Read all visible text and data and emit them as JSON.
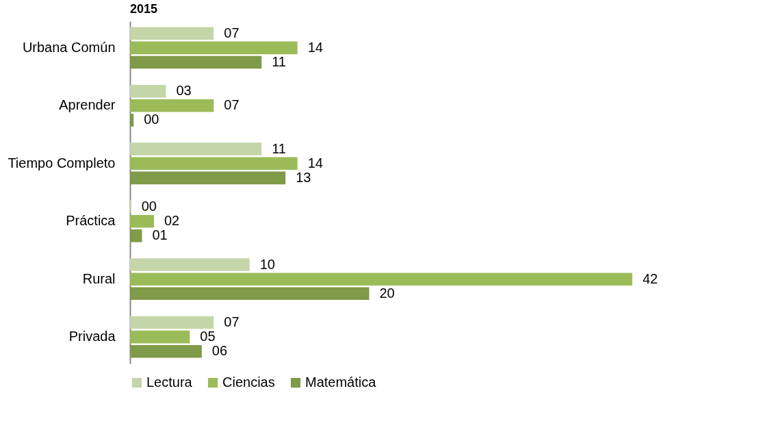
{
  "chart_data": {
    "type": "bar",
    "orientation": "horizontal",
    "title": "2015",
    "categories": [
      "Urbana Común",
      "Aprender",
      "Tiempo Completo",
      "Práctica",
      "Rural",
      "Privada"
    ],
    "series": [
      {
        "name": "Lectura",
        "color": "#c4d6a9",
        "values": [
          7,
          3,
          11,
          0.1,
          10,
          7
        ],
        "value_labels": [
          "07",
          "03",
          "11",
          "00",
          "10",
          "07"
        ]
      },
      {
        "name": "Ciencias",
        "color": "#9bbb59",
        "values": [
          14,
          7,
          14,
          2,
          42,
          5
        ],
        "value_labels": [
          "14",
          "07",
          "14",
          "02",
          "42",
          "05"
        ]
      },
      {
        "name": "Matemática",
        "color": "#7f9a48",
        "values": [
          11,
          0.3,
          13,
          1,
          20,
          6
        ],
        "value_labels": [
          "11",
          "00",
          "13",
          "01",
          "20",
          "06"
        ]
      }
    ],
    "legend": "bottom",
    "grid": false
  }
}
